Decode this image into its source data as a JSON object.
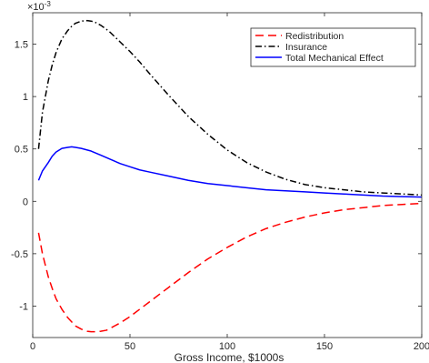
{
  "chart_data": {
    "type": "line",
    "title": "",
    "xlabel": "Gross Income, $1000s",
    "ylabel": "",
    "y_multiplier_label": "×10",
    "y_multiplier_exponent": "-3",
    "xlim": [
      0,
      200
    ],
    "ylim": [
      -1.3,
      1.8
    ],
    "xticks": [
      0,
      50,
      100,
      150,
      200
    ],
    "xtick_labels": [
      "0",
      "50",
      "100",
      "150",
      "200"
    ],
    "yticks": [
      -1,
      -0.5,
      0,
      0.5,
      1,
      1.5
    ],
    "ytick_labels": [
      "-1",
      "-0.5",
      "0",
      "0.5",
      "1",
      "1.5"
    ],
    "grid": false,
    "legend_position": "top-right",
    "series": [
      {
        "name": "Redistribution",
        "color": "#ff0000",
        "style": "dashed",
        "x": [
          3,
          5,
          8,
          10,
          12,
          15,
          18,
          20,
          22,
          25,
          28,
          30,
          33,
          35,
          38,
          40,
          45,
          50,
          55,
          60,
          70,
          80,
          90,
          100,
          110,
          120,
          130,
          140,
          150,
          160,
          170,
          180,
          190,
          200
        ],
        "y": [
          -0.3,
          -0.5,
          -0.72,
          -0.83,
          -0.93,
          -1.03,
          -1.11,
          -1.15,
          -1.19,
          -1.22,
          -1.24,
          -1.245,
          -1.245,
          -1.24,
          -1.23,
          -1.21,
          -1.16,
          -1.1,
          -1.03,
          -0.96,
          -0.82,
          -0.68,
          -0.55,
          -0.44,
          -0.34,
          -0.26,
          -0.2,
          -0.15,
          -0.11,
          -0.08,
          -0.06,
          -0.04,
          -0.03,
          -0.02
        ]
      },
      {
        "name": "Insurance",
        "color": "#000000",
        "style": "dashdot",
        "x": [
          3,
          5,
          8,
          10,
          12,
          15,
          18,
          20,
          22,
          25,
          28,
          30,
          32,
          35,
          38,
          40,
          45,
          50,
          55,
          60,
          70,
          80,
          90,
          100,
          110,
          120,
          130,
          140,
          150,
          160,
          170,
          180,
          190,
          200
        ],
        "y": [
          0.5,
          0.85,
          1.15,
          1.3,
          1.42,
          1.55,
          1.63,
          1.67,
          1.7,
          1.72,
          1.725,
          1.72,
          1.71,
          1.68,
          1.64,
          1.61,
          1.52,
          1.43,
          1.33,
          1.22,
          1.01,
          0.81,
          0.64,
          0.49,
          0.37,
          0.28,
          0.21,
          0.16,
          0.13,
          0.11,
          0.09,
          0.08,
          0.07,
          0.06
        ]
      },
      {
        "name": "Total Mechanical Effect",
        "color": "#0000ff",
        "style": "solid",
        "x": [
          3,
          5,
          8,
          10,
          12,
          15,
          18,
          20,
          22,
          25,
          28,
          30,
          35,
          40,
          45,
          50,
          55,
          60,
          70,
          80,
          90,
          100,
          110,
          120,
          130,
          140,
          150,
          160,
          170,
          180,
          190,
          200
        ],
        "y": [
          0.2,
          0.29,
          0.37,
          0.43,
          0.47,
          0.505,
          0.515,
          0.52,
          0.515,
          0.505,
          0.49,
          0.48,
          0.44,
          0.4,
          0.36,
          0.33,
          0.3,
          0.28,
          0.24,
          0.2,
          0.17,
          0.15,
          0.13,
          0.11,
          0.1,
          0.09,
          0.08,
          0.07,
          0.06,
          0.05,
          0.045,
          0.04
        ]
      }
    ]
  }
}
